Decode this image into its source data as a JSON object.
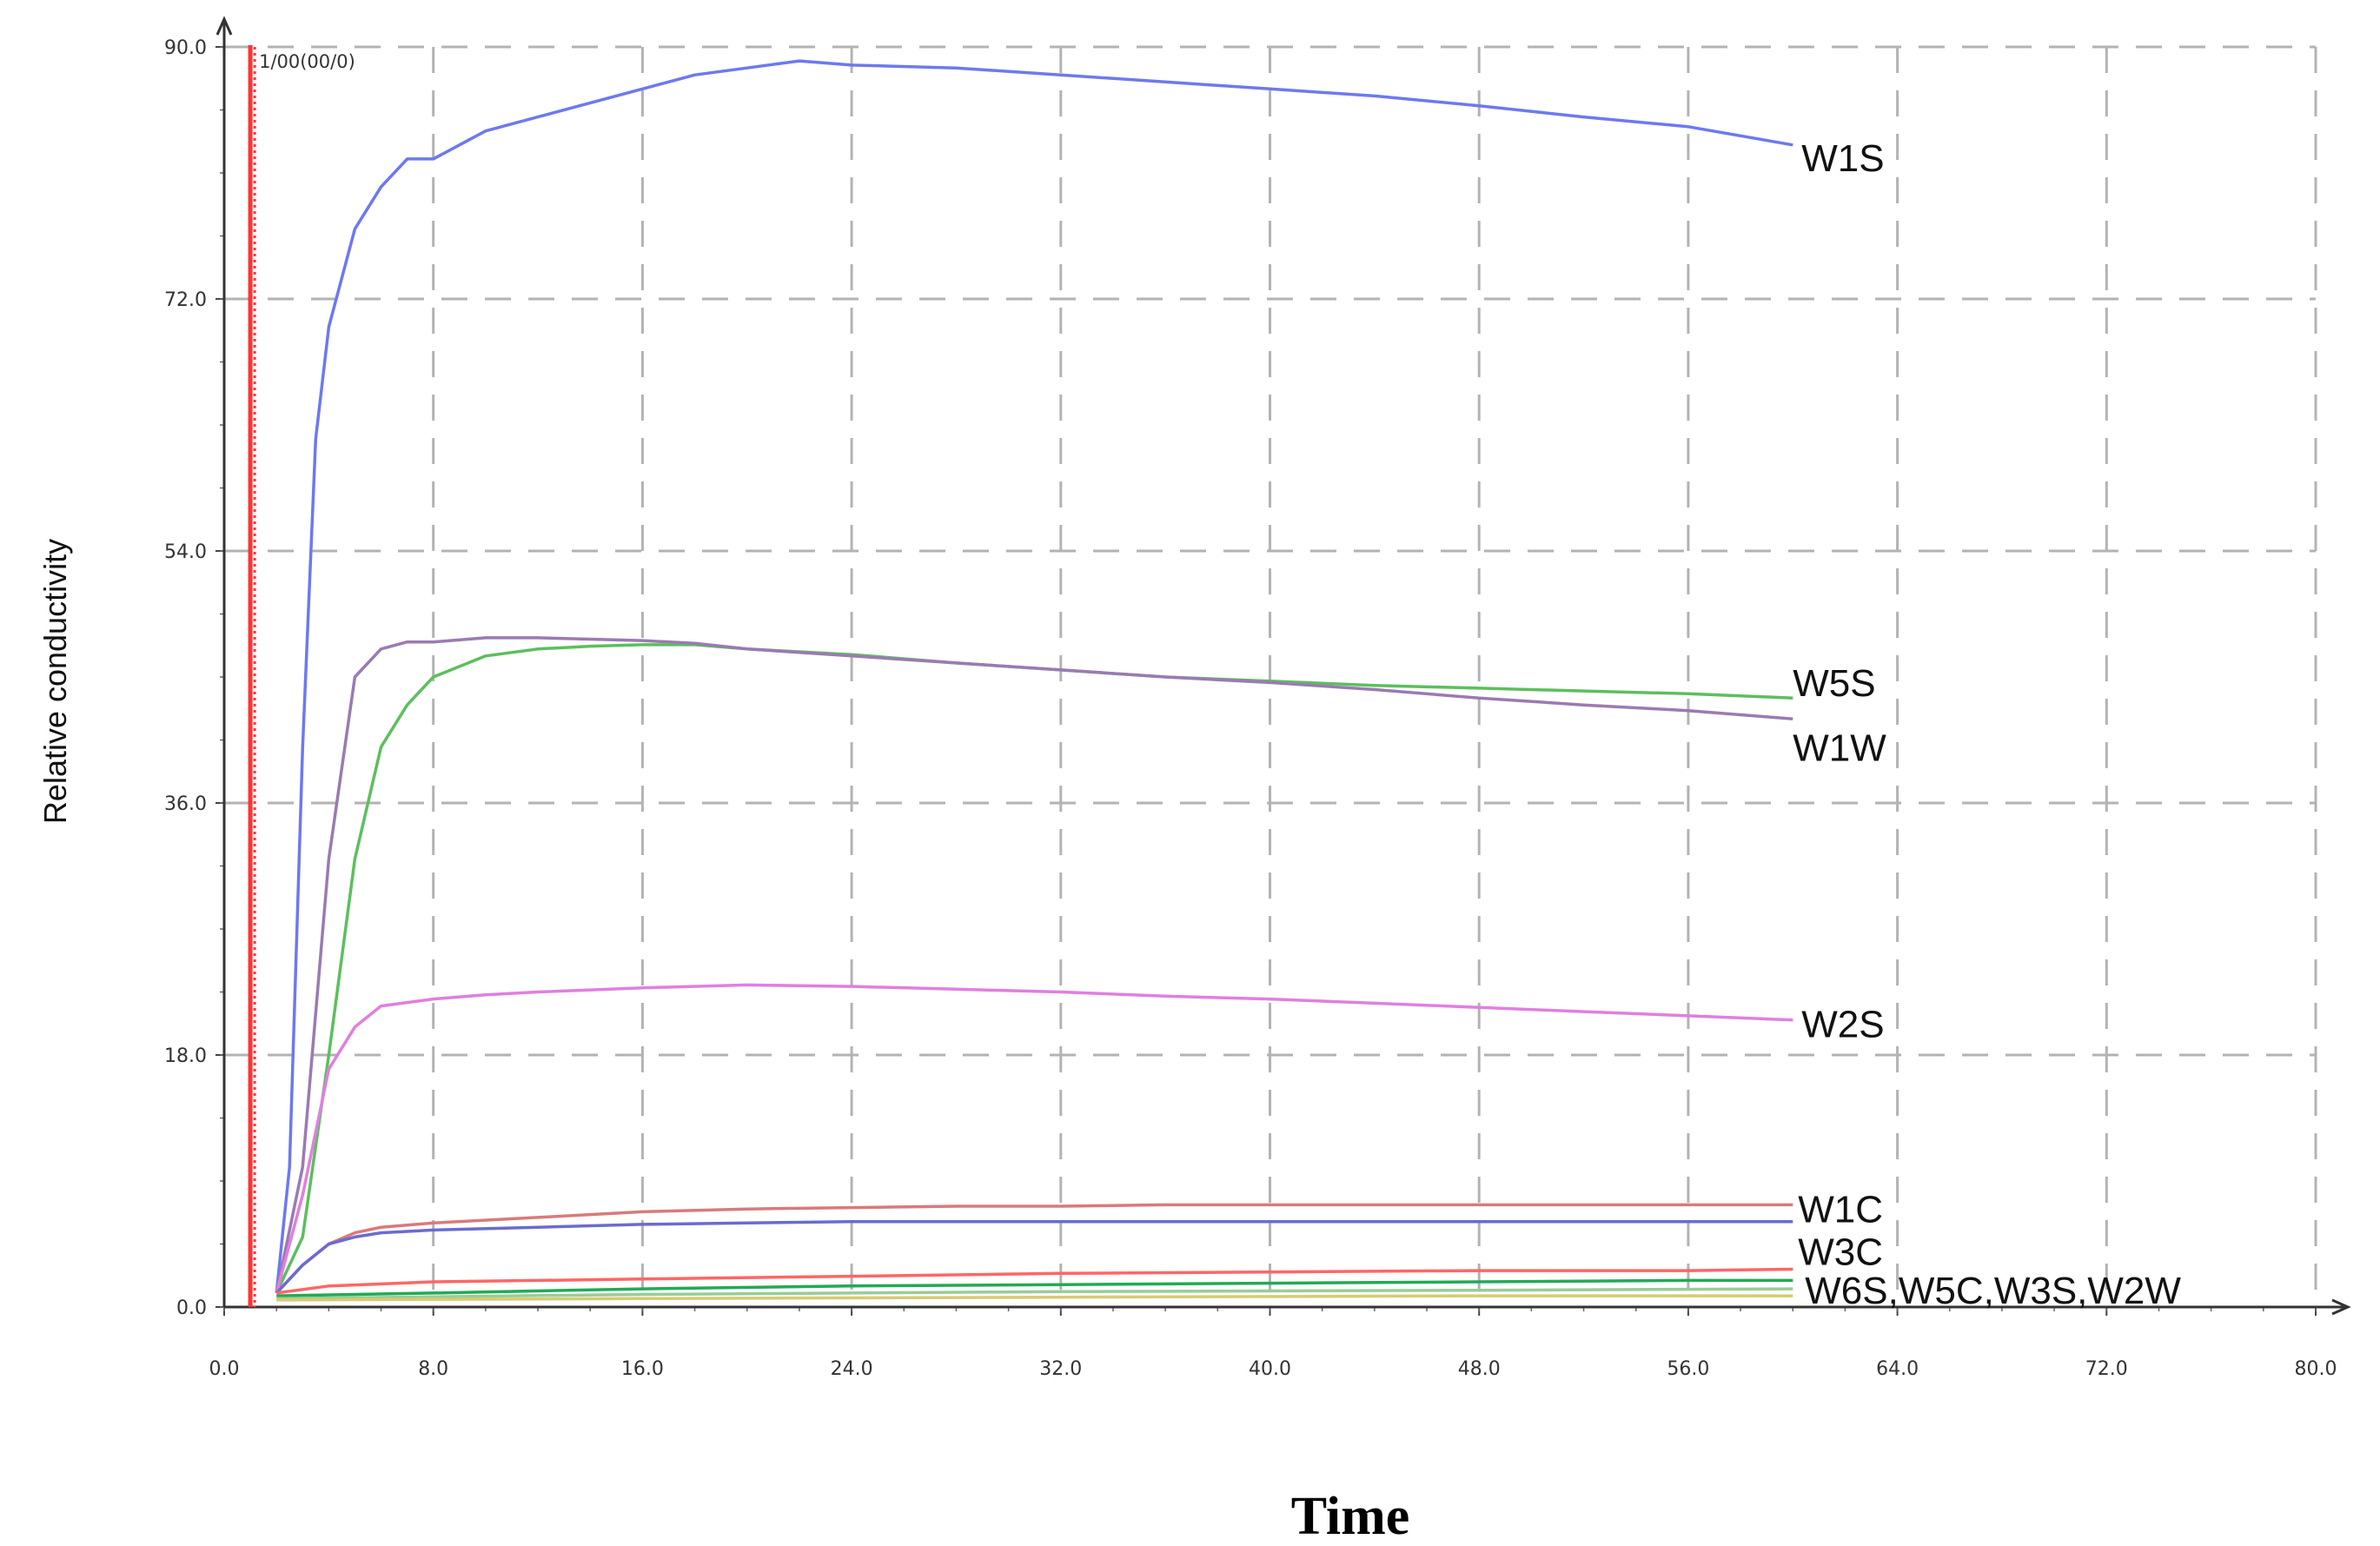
{
  "chart_data": {
    "type": "line",
    "title": "",
    "xlabel": "Time",
    "ylabel": "Relative conductivity",
    "xlim": [
      0,
      80
    ],
    "ylim": [
      0,
      90
    ],
    "x_ticks": [
      "0.0",
      "8.0",
      "16.0",
      "24.0",
      "32.0",
      "40.0",
      "48.0",
      "56.0",
      "64.0",
      "72.0",
      "80.0"
    ],
    "y_ticks": [
      "0.0",
      "18.0",
      "36.0",
      "54.0",
      "72.0",
      "90.0"
    ],
    "grid": true,
    "marker": {
      "label": "1/00(00/0)",
      "x": 1,
      "color": "#ff3333"
    },
    "labels_combined": "W6S,W5C,W3S,W2W",
    "series": [
      {
        "name": "W1S",
        "color": "#6d79ee",
        "points": [
          [
            2,
            1
          ],
          [
            2.5,
            10
          ],
          [
            3,
            40
          ],
          [
            3.5,
            62
          ],
          [
            4,
            70
          ],
          [
            5,
            77
          ],
          [
            6,
            80
          ],
          [
            7,
            82
          ],
          [
            8,
            82
          ],
          [
            9,
            83
          ],
          [
            10,
            84
          ],
          [
            12,
            85
          ],
          [
            14,
            86
          ],
          [
            16,
            87
          ],
          [
            18,
            88
          ],
          [
            20,
            88.5
          ],
          [
            22,
            89
          ],
          [
            24,
            88.7
          ],
          [
            28,
            88.5
          ],
          [
            32,
            88
          ],
          [
            36,
            87.5
          ],
          [
            40,
            87
          ],
          [
            44,
            86.5
          ],
          [
            48,
            85.8
          ],
          [
            52,
            85
          ],
          [
            56,
            84.3
          ],
          [
            60,
            83
          ]
        ]
      },
      {
        "name": "W5S",
        "color": "#5cbf5c",
        "points": [
          [
            2,
            1
          ],
          [
            3,
            5
          ],
          [
            4,
            18
          ],
          [
            5,
            32
          ],
          [
            6,
            40
          ],
          [
            7,
            43
          ],
          [
            8,
            45
          ],
          [
            10,
            46.5
          ],
          [
            12,
            47
          ],
          [
            14,
            47.2
          ],
          [
            16,
            47.3
          ],
          [
            18,
            47.3
          ],
          [
            20,
            47
          ],
          [
            24,
            46.6
          ],
          [
            28,
            46
          ],
          [
            32,
            45.5
          ],
          [
            36,
            45
          ],
          [
            40,
            44.7
          ],
          [
            44,
            44.4
          ],
          [
            48,
            44.2
          ],
          [
            52,
            44
          ],
          [
            56,
            43.8
          ],
          [
            60,
            43.5
          ]
        ]
      },
      {
        "name": "W1W",
        "color": "#9b7ab3",
        "points": [
          [
            2,
            1
          ],
          [
            3,
            10
          ],
          [
            4,
            32
          ],
          [
            5,
            45
          ],
          [
            6,
            47
          ],
          [
            7,
            47.5
          ],
          [
            8,
            47.5
          ],
          [
            10,
            47.8
          ],
          [
            12,
            47.8
          ],
          [
            14,
            47.7
          ],
          [
            16,
            47.6
          ],
          [
            18,
            47.4
          ],
          [
            20,
            47
          ],
          [
            24,
            46.5
          ],
          [
            28,
            46
          ],
          [
            32,
            45.5
          ],
          [
            36,
            45
          ],
          [
            40,
            44.6
          ],
          [
            44,
            44.1
          ],
          [
            48,
            43.5
          ],
          [
            52,
            43
          ],
          [
            56,
            42.6
          ],
          [
            60,
            42
          ]
        ]
      },
      {
        "name": "W2S",
        "color": "#e07fe0",
        "points": [
          [
            2,
            1
          ],
          [
            3,
            8
          ],
          [
            4,
            17
          ],
          [
            5,
            20
          ],
          [
            6,
            21.5
          ],
          [
            8,
            22
          ],
          [
            10,
            22.3
          ],
          [
            12,
            22.5
          ],
          [
            16,
            22.8
          ],
          [
            20,
            23
          ],
          [
            24,
            22.9
          ],
          [
            28,
            22.7
          ],
          [
            32,
            22.5
          ],
          [
            36,
            22.2
          ],
          [
            40,
            22
          ],
          [
            44,
            21.7
          ],
          [
            48,
            21.4
          ],
          [
            52,
            21.1
          ],
          [
            56,
            20.8
          ],
          [
            60,
            20.5
          ]
        ]
      },
      {
        "name": "W1C",
        "color": "#d97a7a",
        "points": [
          [
            2,
            1
          ],
          [
            3,
            3
          ],
          [
            4,
            4.5
          ],
          [
            5,
            5.3
          ],
          [
            6,
            5.7
          ],
          [
            8,
            6
          ],
          [
            12,
            6.4
          ],
          [
            16,
            6.8
          ],
          [
            20,
            7
          ],
          [
            24,
            7.1
          ],
          [
            28,
            7.2
          ],
          [
            32,
            7.2
          ],
          [
            36,
            7.3
          ],
          [
            40,
            7.3
          ],
          [
            44,
            7.3
          ],
          [
            48,
            7.3
          ],
          [
            52,
            7.3
          ],
          [
            56,
            7.3
          ],
          [
            60,
            7.3
          ]
        ]
      },
      {
        "name": "W3C",
        "color": "#6b6bd0",
        "points": [
          [
            2,
            1
          ],
          [
            3,
            3
          ],
          [
            4,
            4.5
          ],
          [
            5,
            5
          ],
          [
            6,
            5.3
          ],
          [
            8,
            5.5
          ],
          [
            12,
            5.7
          ],
          [
            16,
            5.9
          ],
          [
            20,
            6
          ],
          [
            24,
            6.1
          ],
          [
            28,
            6.1
          ],
          [
            32,
            6.1
          ],
          [
            36,
            6.1
          ],
          [
            40,
            6.1
          ],
          [
            44,
            6.1
          ],
          [
            48,
            6.1
          ],
          [
            52,
            6.1
          ],
          [
            56,
            6.1
          ],
          [
            60,
            6.1
          ]
        ]
      },
      {
        "name": "W6S",
        "color": "#ff6666",
        "points": [
          [
            2,
            1
          ],
          [
            4,
            1.5
          ],
          [
            8,
            1.8
          ],
          [
            16,
            2
          ],
          [
            24,
            2.2
          ],
          [
            32,
            2.4
          ],
          [
            40,
            2.5
          ],
          [
            48,
            2.6
          ],
          [
            56,
            2.6
          ],
          [
            60,
            2.7
          ]
        ]
      },
      {
        "name": "W5C",
        "color": "#22aa55",
        "points": [
          [
            2,
            0.8
          ],
          [
            8,
            1
          ],
          [
            16,
            1.3
          ],
          [
            24,
            1.5
          ],
          [
            32,
            1.6
          ],
          [
            40,
            1.7
          ],
          [
            48,
            1.8
          ],
          [
            56,
            1.9
          ],
          [
            60,
            1.9
          ]
        ]
      },
      {
        "name": "W3S",
        "color": "#99cc99",
        "points": [
          [
            2,
            0.6
          ],
          [
            16,
            0.9
          ],
          [
            32,
            1.1
          ],
          [
            48,
            1.2
          ],
          [
            60,
            1.3
          ]
        ]
      },
      {
        "name": "W2W",
        "color": "#d6cc70",
        "points": [
          [
            2,
            0.5
          ],
          [
            16,
            0.6
          ],
          [
            32,
            0.7
          ],
          [
            48,
            0.8
          ],
          [
            60,
            0.8
          ]
        ]
      }
    ]
  }
}
